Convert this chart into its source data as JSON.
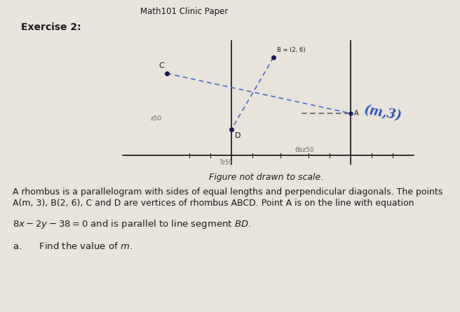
{
  "title": "Math101 Clinic Paper",
  "exercise": "Exercise 2:",
  "figure_caption": "Figure not drawn to scale.",
  "line1": "A rhombus is a parallelogram with sides of equal lengths and perpendicular diagonals. The points",
  "line2": "A(m, 3), B(2, 6), C and D are vertices of rhombus ABCD. Point A is on the line with equation",
  "equation_text": "8x − 2y − 38 = 0 and is parallel to line segment BD.",
  "part_a": "a.      Find the value of m.",
  "bg_color": "#e8e4dc",
  "text_color": "#1a1a1a",
  "diagram": {
    "B_label": "B = (2, 6)",
    "A_label": "A",
    "A_coord_label": "(m,3)",
    "C_label": "C",
    "D_label": "D",
    "label_z50": "z50",
    "label_6bz50": "6bz50",
    "label_origin": "7z50"
  }
}
